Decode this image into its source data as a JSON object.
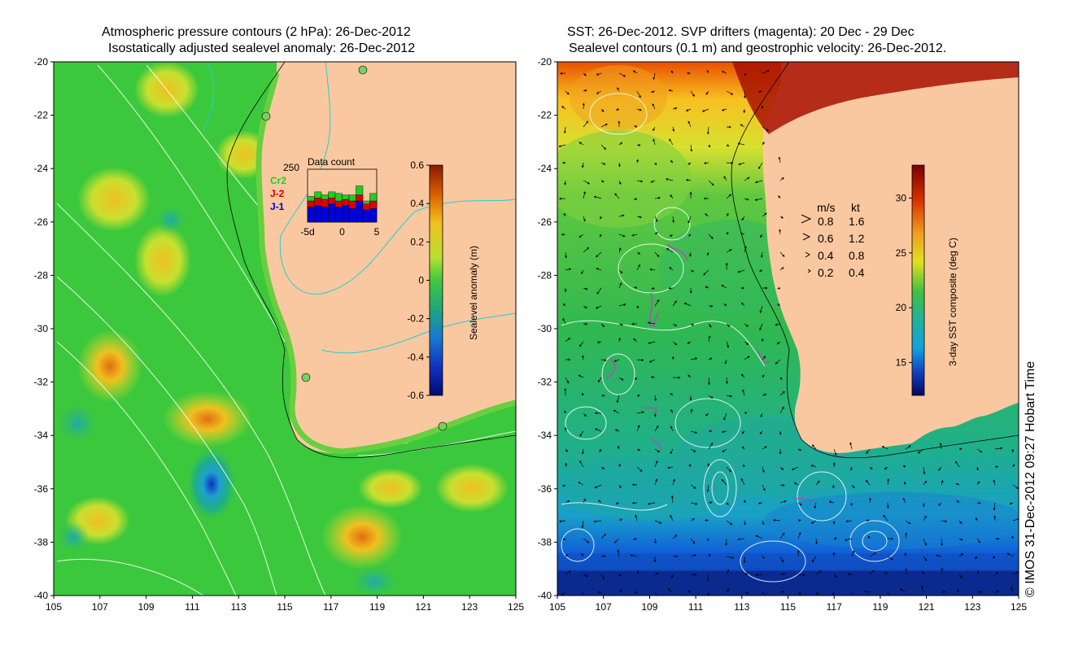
{
  "left_panel": {
    "title_line1": "Atmospheric pressure contours (2 hPa): 26-Dec-2012",
    "title_line2": "Isostatically adjusted sealevel anomaly: 26-Dec-2012",
    "x_ticks": [
      "105",
      "107",
      "109",
      "111",
      "113",
      "115",
      "117",
      "119",
      "121",
      "123",
      "125"
    ],
    "y_ticks": [
      "-20",
      "-22",
      "-24",
      "-26",
      "-28",
      "-30",
      "-32",
      "-34",
      "-36",
      "-38",
      "-40"
    ],
    "colorbar": {
      "label": "Sealevel anomaly (m)",
      "ticks": [
        "0.6",
        "0.4",
        "0.2",
        "0",
        "-0.2",
        "-0.4",
        "-0.6"
      ]
    },
    "data_count": {
      "title": "Data count",
      "max_label": "250",
      "legend": [
        "Cr2",
        "J-2",
        "J-1"
      ],
      "legend_colors": [
        "#22cc22",
        "#dd0000",
        "#0000dd"
      ],
      "x_ticks": [
        "-5d",
        "0",
        "5"
      ]
    }
  },
  "right_panel": {
    "title_line1": "SST: 26-Dec-2012. SVP drifters (magenta): 20 Dec - 29 Dec",
    "title_line2": "Sealevel contours (0.1 m) and geostrophic velocity: 26-Dec-2012.",
    "x_ticks": [
      "105",
      "107",
      "109",
      "111",
      "113",
      "115",
      "117",
      "119",
      "121",
      "123",
      "125"
    ],
    "y_ticks": [
      "-20",
      "-22",
      "-24",
      "-26",
      "-28",
      "-30",
      "-32",
      "-34",
      "-36",
      "-38",
      "-40"
    ],
    "colorbar": {
      "label": "3-day SST composite (deg C)",
      "ticks": [
        "30",
        "25",
        "20",
        "15"
      ]
    },
    "velocity_legend": {
      "header_ms": "m/s",
      "header_kt": "kt",
      "rows": [
        {
          "ms": "0.8",
          "kt": "1.6"
        },
        {
          "ms": "0.6",
          "kt": "1.2"
        },
        {
          "ms": "0.4",
          "kt": "0.8"
        },
        {
          "ms": "0.2",
          "kt": "0.4"
        }
      ]
    }
  },
  "copyright": "© IMOS 31-Dec-2012 09:27 Hobart Time",
  "colors": {
    "land": "#fac8a0",
    "anomaly_green": "#3cc83c",
    "sst_green": "#2cb85a"
  }
}
